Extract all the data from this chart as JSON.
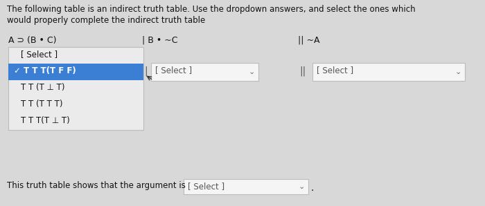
{
  "background_color": "#d8d8d8",
  "title_line1": "The following table is an indirect truth table. Use the dropdown answers, and select the ones which",
  "title_line2": "would properly complete the indirect truth table",
  "col1_label": "A ⊃ (B • C)",
  "col2_label": "| B • ~C",
  "col3_label": "|| ~A",
  "dropdown1_items": [
    "[ Select ]",
    "✓ T T T(T F F)",
    "T T (T ⊥ T)",
    "T T (T T T)",
    "T T T(T ⊥ T)"
  ],
  "dropdown1_selected": 1,
  "dropdown2_text": "[ Select ]",
  "dropdown3_text": "[ Select ]",
  "bottom_text": "This truth table shows that the argument is",
  "bottom_dropdown_text": "[ Select ]",
  "highlight_color": "#3a7fd4",
  "highlight_text_color": "#ffffff",
  "dropdown_bg": "#ebebeb",
  "dropdown_border": "#bbbbbb",
  "normal_text_color": "#111111",
  "select_box_color": "#f5f5f5",
  "select_box_border": "#bbbbbb",
  "gray_text_color": "#555555"
}
